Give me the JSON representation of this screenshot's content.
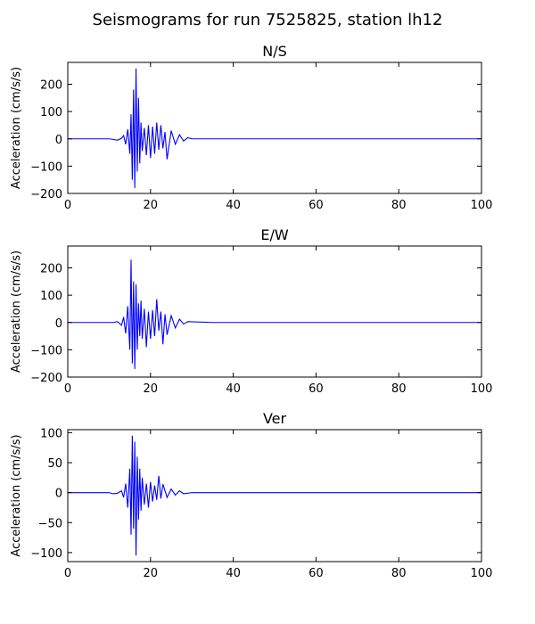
{
  "figure": {
    "title": "Seismograms for run 7525825, station lh12"
  },
  "chart_data": [
    {
      "type": "line",
      "title": "N/S",
      "xlabel": "",
      "ylabel": "Acceleration (cm/s/s)",
      "xlim": [
        0,
        100
      ],
      "ylim": [
        -200,
        280
      ],
      "xticks": [
        0,
        20,
        40,
        60,
        80,
        100
      ],
      "yticks": [
        -200,
        -100,
        0,
        100,
        200
      ],
      "grid": false,
      "color": "#0000ff",
      "series": [
        {
          "values_x": [
            0,
            10,
            11,
            12,
            13,
            13.5,
            14,
            14.5,
            15,
            15.3,
            15.6,
            15.9,
            16.2,
            16.5,
            16.8,
            17.1,
            17.4,
            17.7,
            18,
            18.5,
            19,
            19.5,
            20,
            20.5,
            21,
            21.5,
            22,
            22.5,
            23,
            23.5,
            24,
            25,
            26,
            27,
            28,
            29,
            30,
            35,
            100
          ],
          "values_y": [
            0,
            0,
            -2,
            -5,
            2,
            12,
            -20,
            35,
            -55,
            90,
            -150,
            180,
            -180,
            258,
            -120,
            150,
            -90,
            60,
            -45,
            40,
            -60,
            50,
            -70,
            45,
            -55,
            60,
            -40,
            50,
            -35,
            25,
            -75,
            30,
            -20,
            15,
            -8,
            4,
            0,
            0,
            0
          ]
        }
      ]
    },
    {
      "type": "line",
      "title": "E/W",
      "xlabel": "",
      "ylabel": "Acceleration (cm/s/s)",
      "xlim": [
        0,
        100
      ],
      "ylim": [
        -200,
        280
      ],
      "xticks": [
        0,
        20,
        40,
        60,
        80,
        100
      ],
      "yticks": [
        -200,
        -100,
        0,
        100,
        200
      ],
      "grid": false,
      "color": "#0000ff",
      "series": [
        {
          "values_x": [
            0,
            11,
            12,
            13,
            13.5,
            14,
            14.5,
            15,
            15.3,
            15.6,
            15.9,
            16.2,
            16.5,
            16.8,
            17.1,
            17.4,
            17.7,
            18,
            18.5,
            19,
            19.5,
            20,
            20.5,
            21,
            21.5,
            22,
            22.5,
            23,
            23.5,
            24,
            25,
            26,
            27,
            28,
            29,
            35,
            100
          ],
          "values_y": [
            0,
            0,
            3,
            -10,
            20,
            -40,
            60,
            -100,
            230,
            -150,
            150,
            -170,
            140,
            -100,
            70,
            -50,
            80,
            -60,
            50,
            -90,
            40,
            -60,
            45,
            -50,
            85,
            -30,
            40,
            -80,
            30,
            -45,
            25,
            -20,
            12,
            -6,
            3,
            0,
            0
          ]
        }
      ]
    },
    {
      "type": "line",
      "title": "Ver",
      "xlabel": "",
      "ylabel": "Acceleration (cm/s/s)",
      "xlim": [
        0,
        100
      ],
      "ylim": [
        -115,
        105
      ],
      "xticks": [
        0,
        20,
        40,
        60,
        80,
        100
      ],
      "yticks": [
        -100,
        -50,
        0,
        50,
        100
      ],
      "grid": false,
      "color": "#0000ff",
      "series": [
        {
          "values_x": [
            0,
            10,
            11,
            12,
            13,
            13.5,
            14,
            14.5,
            15,
            15.3,
            15.6,
            15.9,
            16.2,
            16.5,
            16.8,
            17.1,
            17.4,
            17.7,
            18,
            18.5,
            19,
            19.5,
            20,
            20.5,
            21,
            21.5,
            22,
            22.5,
            23,
            24,
            25,
            26,
            27,
            28,
            30,
            35,
            100
          ],
          "values_y": [
            0,
            0,
            -2,
            -1,
            3,
            -8,
            15,
            -25,
            40,
            -70,
            95,
            -60,
            85,
            -105,
            60,
            -45,
            40,
            -30,
            25,
            -20,
            15,
            -25,
            18,
            -15,
            12,
            -12,
            28,
            -10,
            14,
            -8,
            6,
            -4,
            3,
            -2,
            0,
            0,
            0
          ]
        }
      ]
    }
  ]
}
